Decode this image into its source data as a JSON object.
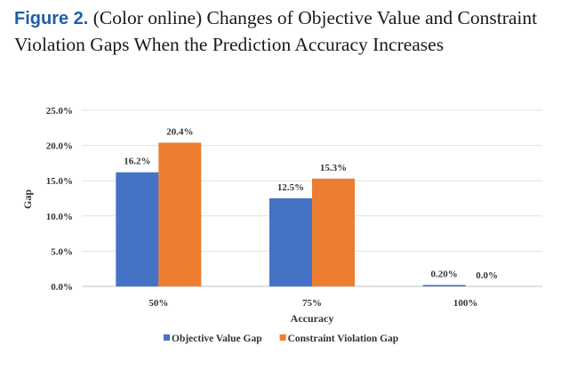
{
  "caption": {
    "label": "Figure 2.",
    "text": "(Color online) Changes of Objective Value and Constraint Violation Gaps When the Prediction Accuracy Increases"
  },
  "chart_data": {
    "type": "bar",
    "title": "",
    "xlabel": "Accuracy",
    "ylabel": "Gap",
    "categories": [
      "50%",
      "75%",
      "100%"
    ],
    "series": [
      {
        "name": "Objective Value Gap",
        "values": [
          16.2,
          12.5,
          0.2
        ],
        "labels": [
          "16.2%",
          "12.5%",
          "0.20%"
        ],
        "color": "#4472c4"
      },
      {
        "name": "Constraint Violation Gap",
        "values": [
          20.4,
          15.3,
          0.0
        ],
        "labels": [
          "20.4%",
          "15.3%",
          "0.0%"
        ],
        "color": "#ed7d31"
      }
    ],
    "yticks": [
      "0.0%",
      "5.0%",
      "10.0%",
      "15.0%",
      "20.0%",
      "25.0%"
    ],
    "ylim": [
      0,
      25
    ],
    "grid": true,
    "legend": "bottom"
  }
}
